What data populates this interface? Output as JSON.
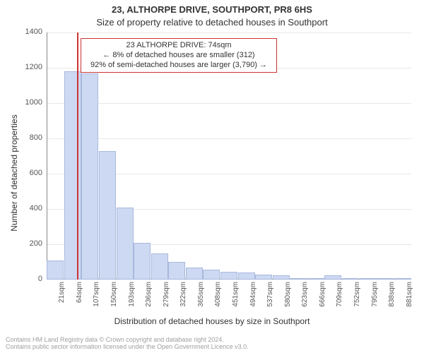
{
  "title_line1": "23, ALTHORPE DRIVE, SOUTHPORT, PR8 6HS",
  "title_line2": "Size of property relative to detached houses in Southport",
  "y_axis_label": "Number of detached properties",
  "x_axis_label": "Distribution of detached houses by size in Southport",
  "chart": {
    "type": "histogram",
    "background_color": "#ffffff",
    "grid_color": "#e8e8e8",
    "axis_color": "#888888",
    "bar_fill": "#cdd9f2",
    "bar_border": "#a8b8dd",
    "marker_color": "#cc3333",
    "ylim": [
      0,
      1400
    ],
    "ytick_step": 200,
    "yticks": [
      0,
      200,
      400,
      600,
      800,
      1000,
      1200,
      1400
    ],
    "xtick_labels": [
      "21sqm",
      "64sqm",
      "107sqm",
      "150sqm",
      "193sqm",
      "236sqm",
      "279sqm",
      "322sqm",
      "365sqm",
      "408sqm",
      "451sqm",
      "494sqm",
      "537sqm",
      "580sqm",
      "623sqm",
      "666sqm",
      "709sqm",
      "752sqm",
      "795sqm",
      "838sqm",
      "881sqm"
    ],
    "bar_values": [
      110,
      1180,
      1170,
      730,
      410,
      210,
      150,
      100,
      70,
      55,
      45,
      40,
      30,
      25,
      10,
      10,
      25,
      5,
      5,
      3,
      2
    ],
    "marker_value_sqm": 74,
    "annotation": {
      "line1": "23 ALTHORPE DRIVE: 74sqm",
      "line2": "← 8% of detached houses are smaller (312)",
      "line3": "92% of semi-detached houses are larger (3,790) →",
      "border_color": "#cc3333"
    }
  },
  "attribution": "Contains HM Land Registry data © Crown copyright and database right 2024.\nContains public sector information licensed under the Open Government Licence v3.0.",
  "fonts": {
    "title": 13,
    "label": 12,
    "tick": 11,
    "xtick": 10,
    "annotation": 11,
    "attribution": 9
  }
}
